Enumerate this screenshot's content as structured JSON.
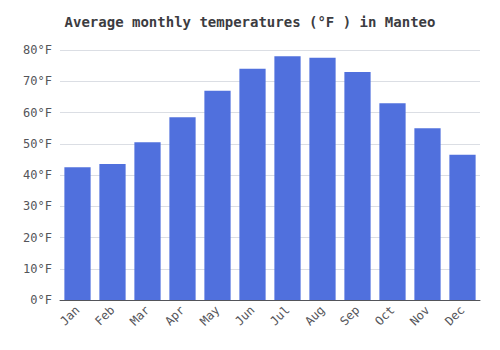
{
  "chart_data": {
    "type": "bar",
    "title": "Average monthly temperatures (°F ) in Manteo",
    "categories": [
      "Jan",
      "Feb",
      "Mar",
      "Apr",
      "May",
      "Jun",
      "Jul",
      "Aug",
      "Sep",
      "Oct",
      "Nov",
      "Dec"
    ],
    "values": [
      42.5,
      43.5,
      50.5,
      58.5,
      67.0,
      74.0,
      78.0,
      77.5,
      73.0,
      63.0,
      55.0,
      46.5
    ],
    "ylim": [
      0,
      80
    ],
    "yticks": [
      {
        "value": 0,
        "label": "0°F"
      },
      {
        "value": 10,
        "label": "10°F"
      },
      {
        "value": 20,
        "label": "20°F"
      },
      {
        "value": 30,
        "label": "30°F"
      },
      {
        "value": 40,
        "label": "40°F"
      },
      {
        "value": 50,
        "label": "50°F"
      },
      {
        "value": 60,
        "label": "60°F"
      },
      {
        "value": 70,
        "label": "70°F"
      },
      {
        "value": 80,
        "label": "80°F"
      }
    ],
    "grid": true
  }
}
